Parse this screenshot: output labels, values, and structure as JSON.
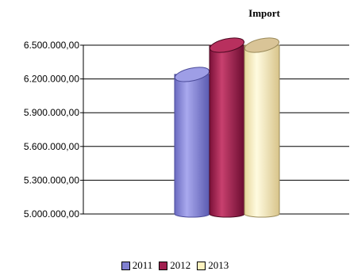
{
  "chart_data": {
    "type": "bar",
    "title": "Import",
    "categories": [
      ""
    ],
    "series": [
      {
        "name": "2011",
        "values": [
          6240000
        ],
        "color": "#8080d0"
      },
      {
        "name": "2012",
        "values": [
          6500000
        ],
        "color": "#a0204f"
      },
      {
        "name": "2013",
        "values": [
          6500000
        ],
        "color": "#fff3c0"
      }
    ],
    "ylim": [
      5000000,
      6500000
    ],
    "yticks": [
      "5.000.000,00",
      "5.300.000,00",
      "5.600.000,00",
      "5.900.000,00",
      "6.200.000,00",
      "6.500.000,00"
    ],
    "ytick_values": [
      5000000,
      5300000,
      5600000,
      5900000,
      6200000,
      6500000
    ],
    "grid": true,
    "legend_position": "bottom",
    "bar_style": "3d-cylinder"
  }
}
